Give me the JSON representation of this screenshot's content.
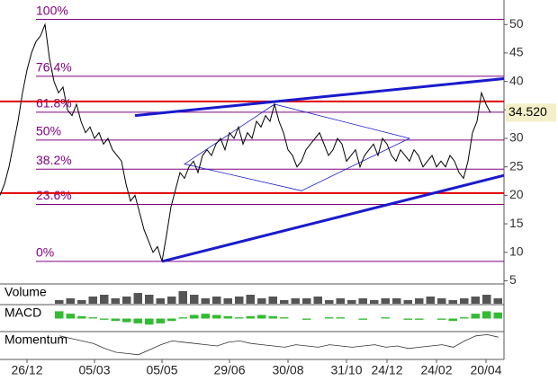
{
  "chart_data": {
    "type": "stock",
    "xlim": [
      0,
      112
    ],
    "xticks": [
      {
        "value": 6,
        "label": "26/12"
      },
      {
        "value": 21,
        "label": "05/03"
      },
      {
        "value": 36,
        "label": "05/05"
      },
      {
        "value": 51,
        "label": "29/06"
      },
      {
        "value": 64,
        "label": "30/08"
      },
      {
        "value": 77,
        "label": "31/10"
      },
      {
        "value": 86,
        "label": "24/12"
      },
      {
        "value": 97,
        "label": "24/02"
      },
      {
        "value": 108,
        "label": "20/04"
      }
    ],
    "ylim": [
      4.6,
      54.3
    ],
    "yticks": [
      5,
      10,
      15,
      20,
      25,
      30,
      35,
      40,
      45,
      50
    ],
    "price": {
      "color": "#000000",
      "values": [
        20,
        22,
        25,
        29,
        33,
        38,
        42,
        45,
        47,
        48,
        50,
        44,
        40,
        38,
        39,
        35,
        34,
        36,
        33,
        31,
        32,
        30,
        31,
        29,
        30,
        28,
        27,
        26,
        22,
        19,
        20,
        17,
        14,
        12,
        10,
        11,
        8.4,
        13,
        18,
        21,
        24,
        23,
        25,
        26,
        24,
        27,
        28,
        27,
        29,
        30,
        28,
        31,
        30,
        32,
        29,
        31,
        30,
        33,
        32,
        34,
        33,
        36,
        33,
        31,
        28,
        27,
        25,
        26,
        28,
        29,
        30,
        31,
        29,
        27,
        28,
        30,
        29,
        26,
        27,
        28,
        25,
        27,
        28,
        29,
        27,
        30,
        29,
        27,
        26,
        28,
        27,
        26,
        28,
        27,
        25,
        26,
        27,
        25,
        26,
        25,
        27,
        26,
        24,
        23,
        26,
        31,
        33,
        38,
        36,
        34.52
      ]
    },
    "last_price": {
      "value": 34.52,
      "label": "34.520"
    },
    "fib_color": "#800080",
    "fib_levels": [
      {
        "label": "100%",
        "value": 50.9
      },
      {
        "label": "76.4%",
        "value": 40.9
      },
      {
        "label": "61.8%",
        "value": 34.6
      },
      {
        "label": "50%",
        "value": 29.7
      },
      {
        "label": "38.2%",
        "value": 24.6
      },
      {
        "label": "23.6%",
        "value": 18.4
      },
      {
        "label": "0%",
        "value": 8.4
      }
    ],
    "support_color": "#e00000",
    "support_levels": [
      36.5,
      20.4
    ],
    "trend_color": "#1a1acc",
    "trend_lines": [
      [
        [
          30,
          34
        ],
        [
          112,
          40.5
        ]
      ],
      [
        [
          36,
          8.4
        ],
        [
          112,
          23.5
        ]
      ]
    ],
    "pattern": [
      [
        41,
        25.5
      ],
      [
        61,
        36
      ],
      [
        91,
        30
      ],
      [
        67,
        20.8
      ]
    ],
    "panes": [
      {
        "title": "Volume",
        "ylim": [
          0,
          10
        ],
        "values": [
          2,
          3,
          2,
          4,
          5,
          3,
          4,
          6,
          5,
          3,
          4,
          7,
          5,
          3,
          4,
          3,
          4,
          5,
          3,
          4,
          2,
          3,
          3,
          4,
          2,
          3,
          2,
          3,
          2,
          3,
          3,
          2,
          3,
          4,
          3,
          2,
          3,
          4,
          5,
          3
        ]
      },
      {
        "title": "MACD",
        "ylim": [
          -1,
          1
        ],
        "values": [
          0.6,
          0.4,
          0.2,
          0.1,
          -0.1,
          -0.2,
          -0.3,
          -0.4,
          -0.5,
          -0.4,
          -0.2,
          0.1,
          0.3,
          0.4,
          0.3,
          0.2,
          0.1,
          0.2,
          0.3,
          0.2,
          0.1,
          0,
          -0.1,
          0,
          0.1,
          0.1,
          0,
          -0.1,
          0,
          0.1,
          0,
          -0.1,
          -0.1,
          0,
          -0.1,
          -0.2,
          0.1,
          0.4,
          0.6,
          0.5
        ]
      },
      {
        "title": "Momentum",
        "ylim": [
          90,
          110
        ],
        "values": [
          108,
          106,
          104,
          102,
          98,
          95,
          94,
          93,
          97,
          101,
          104,
          103,
          102,
          101,
          100,
          103,
          104,
          102,
          101,
          100,
          99,
          101,
          100,
          99,
          101,
          100,
          99,
          100,
          101,
          99,
          100,
          98,
          99,
          100,
          101,
          99,
          104,
          108,
          109,
          107
        ]
      }
    ]
  }
}
